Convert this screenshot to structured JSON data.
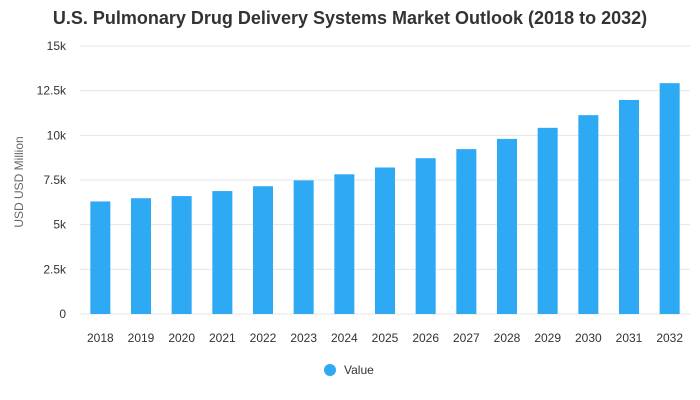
{
  "chart_data": {
    "type": "bar",
    "title": "U.S. Pulmonary Drug Delivery Systems Market Outlook (2018 to 2032)",
    "xlabel": "",
    "ylabel": "USD USD Million",
    "categories": [
      "2018",
      "2019",
      "2020",
      "2021",
      "2022",
      "2023",
      "2024",
      "2025",
      "2026",
      "2027",
      "2028",
      "2029",
      "2030",
      "2031",
      "2032"
    ],
    "series": [
      {
        "name": "Value",
        "color": "#2eaaf5",
        "values": [
          6300,
          6480,
          6600,
          6880,
          7150,
          7480,
          7820,
          8200,
          8720,
          9230,
          9800,
          10420,
          11130,
          11980,
          12920
        ]
      }
    ],
    "ylim": [
      0,
      15000
    ],
    "yticks": [
      {
        "value": 0,
        "label": "0"
      },
      {
        "value": 2500,
        "label": "2.5k"
      },
      {
        "value": 5000,
        "label": "5k"
      },
      {
        "value": 7500,
        "label": "7.5k"
      },
      {
        "value": 10000,
        "label": "10k"
      },
      {
        "value": 12500,
        "label": "12.5k"
      },
      {
        "value": 15000,
        "label": "15k"
      }
    ],
    "grid": true,
    "legend_position": "bottom-center"
  }
}
